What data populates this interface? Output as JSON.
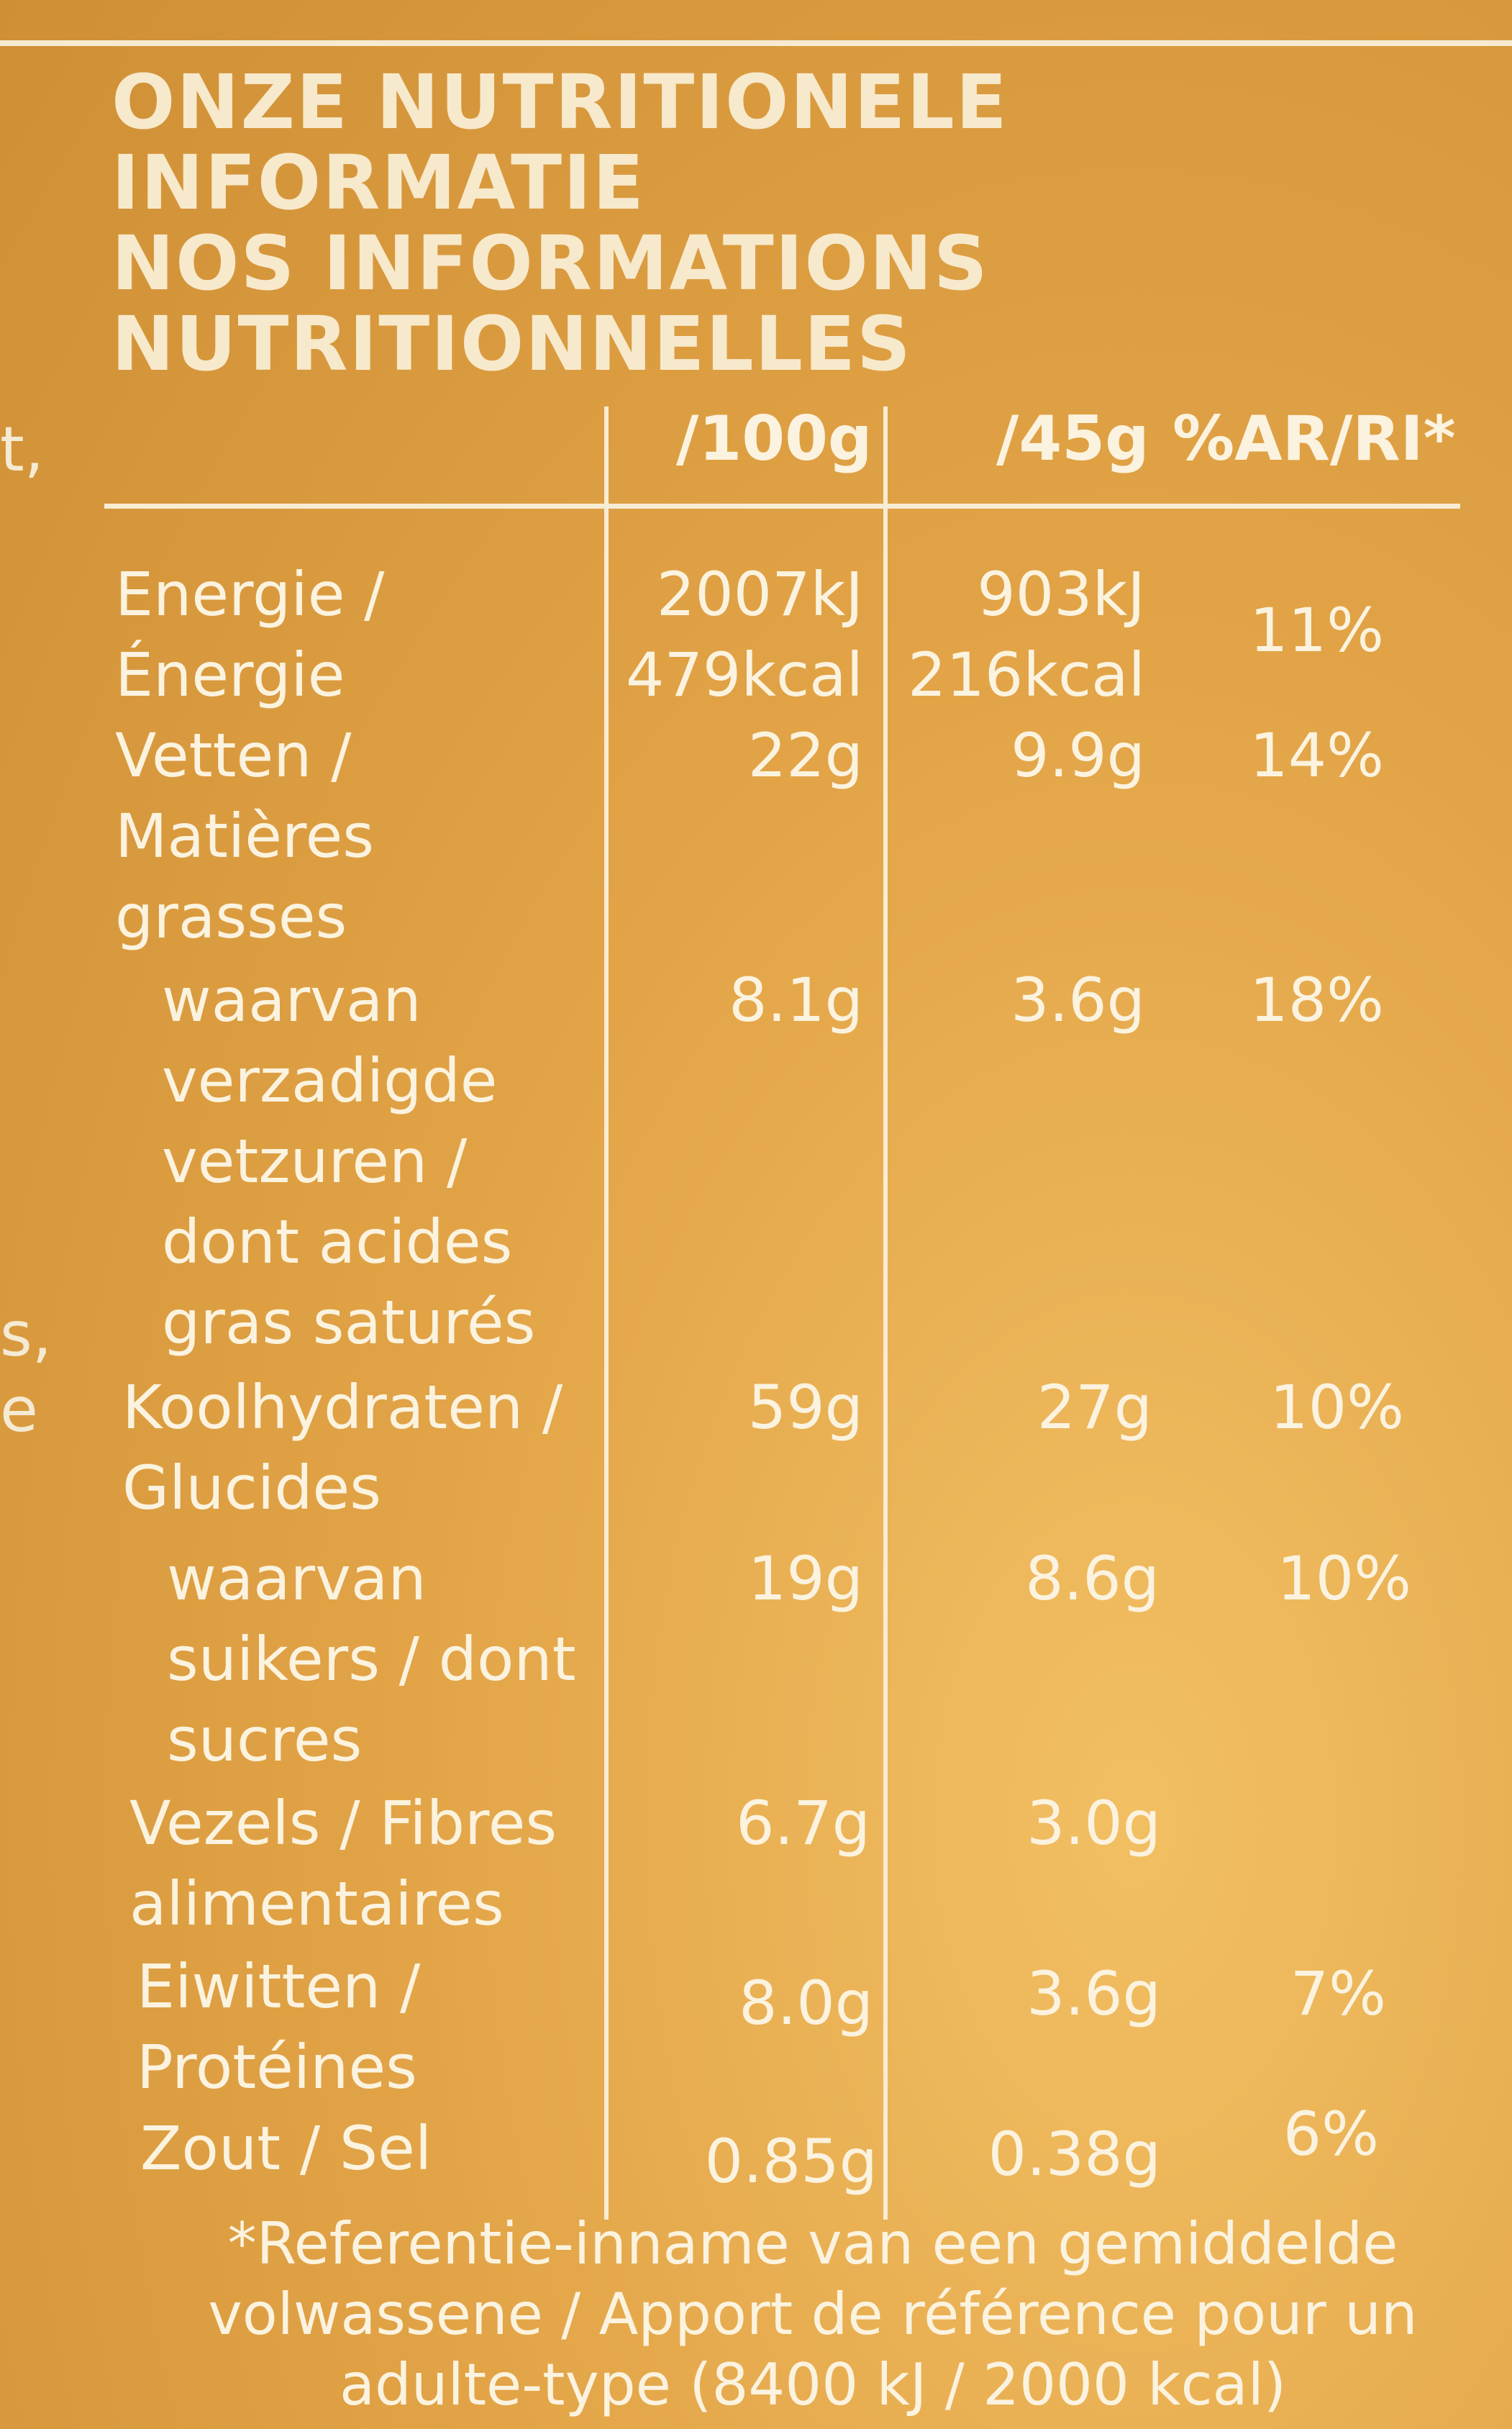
{
  "heading": {
    "line1": "ONZE NUTRITIONELE",
    "line2": "INFORMATIE",
    "line3": "NOS INFORMATIONS",
    "line4": "NUTRITIONNELLES"
  },
  "edge_text": {
    "t1": "t,",
    "t2": "s,",
    "t3": "e"
  },
  "columns": {
    "per100": "/100g",
    "per45": "/45g",
    "ri": "%AR/RI*"
  },
  "rows": {
    "energy": {
      "label": "Energie /\nÉnergie",
      "per100_kj": "2007kJ",
      "per100_kcal": "479kcal",
      "per45_kj": "903kJ",
      "per45_kcal": "216kcal",
      "ri": "11%"
    },
    "fat": {
      "label": "Vetten /\nMatières\ngrasses",
      "per100": "22g",
      "per45": "9.9g",
      "ri": "14%"
    },
    "saturated": {
      "label": "waarvan\nverzadigde\nvetzuren /\ndont acides\ngras saturés",
      "per100": "8.1g",
      "per45": "3.6g",
      "ri": "18%"
    },
    "carbs": {
      "label": "Koolhydraten /\nGlucides",
      "per100": "59g",
      "per45": "27g",
      "ri": "10%"
    },
    "sugars": {
      "label": "waarvan\nsuikers / dont\nsucres",
      "per100": "19g",
      "per45": "8.6g",
      "ri": "10%"
    },
    "fibre": {
      "label": "Vezels / Fibres\nalimentaires",
      "per100": "6.7g",
      "per45": "3.0g",
      "ri": ""
    },
    "protein": {
      "label": "Eiwitten /\nProtéines",
      "per100": "8.0g",
      "per45": "3.6g",
      "ri": "7%"
    },
    "salt": {
      "label": "Zout / Sel",
      "per100": "0.85g",
      "per45": "0.38g",
      "ri": "6%"
    }
  },
  "footnote": "*Referentie-inname van een gemiddelde volwassene / Apport de référence pour un adulte-type (8400 kJ / 2000 kcal)",
  "colors": {
    "background": "#e2a447",
    "text": "#fbf3df"
  }
}
